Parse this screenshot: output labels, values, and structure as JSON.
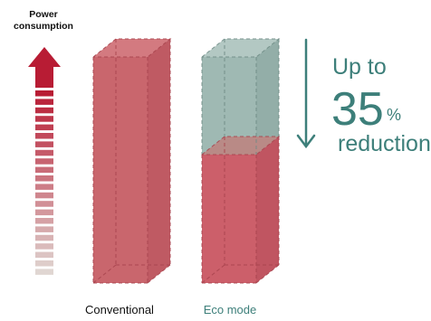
{
  "axis": {
    "title_line1": "Power",
    "title_line2": "consumption"
  },
  "bars": [
    {
      "label": "Conventional",
      "label_color": "#111111"
    },
    {
      "label": "Eco mode",
      "label_color": "#3d7f7a"
    }
  ],
  "callout": {
    "prefix": "Up to",
    "value": "35",
    "unit": "%",
    "suffix": "reduction"
  },
  "chart_data": {
    "type": "bar",
    "categories": [
      "Conventional",
      "Eco mode"
    ],
    "reduction_percent": 35
  },
  "colors": {
    "axis_arrow": "#b81c34",
    "conventional_bar": "#c9666d",
    "eco_bar_remaining": "#cc5f6a",
    "eco_bar_saved": "#9fb9b3",
    "accent_teal": "#3d7f7a"
  }
}
